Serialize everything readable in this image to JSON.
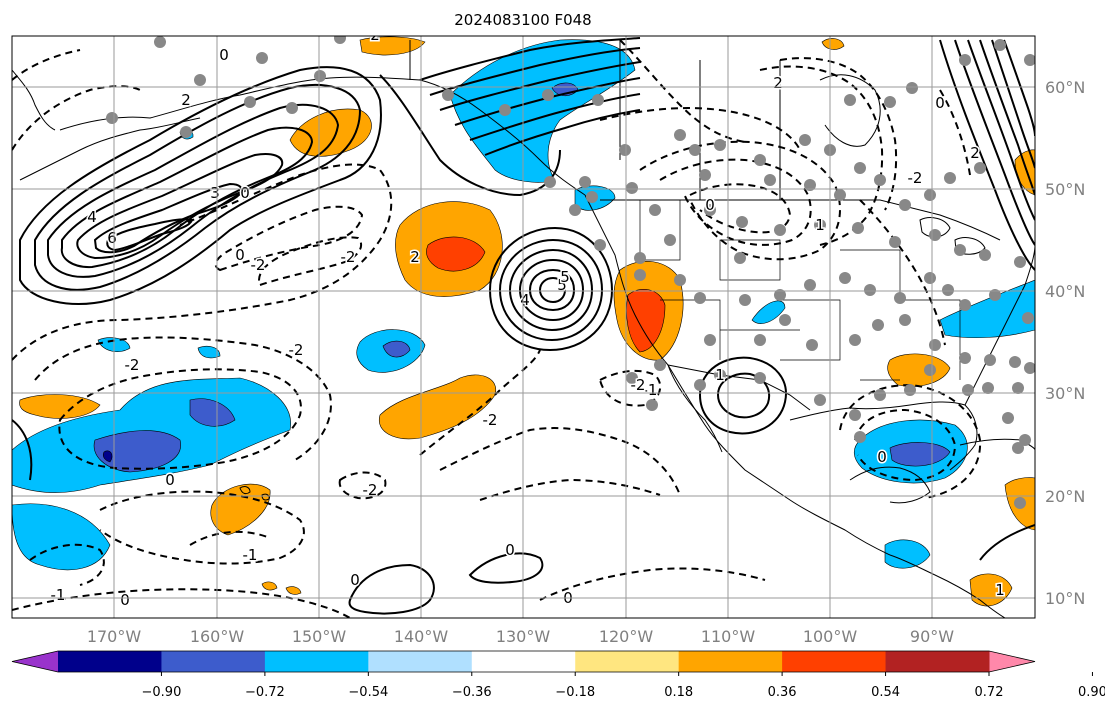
{
  "title": "2024083100 F048",
  "map": {
    "lat_labels": [
      "60°N",
      "50°N",
      "40°N",
      "30°N",
      "20°N",
      "10°N"
    ],
    "lon_labels": [
      "170°W",
      "160°W",
      "150°W",
      "140°W",
      "130°W",
      "120°W",
      "110°W",
      "100°W",
      "90°W"
    ],
    "contour_labels": [
      "2",
      "0",
      "3",
      "4",
      "6",
      "5",
      "0",
      "2",
      "-2",
      "-2",
      "2",
      "0",
      "-2",
      "4",
      "5",
      "-2",
      "0",
      "-1",
      "-2",
      "-2",
      "-1",
      "1",
      "0",
      "0",
      "0",
      "-1",
      "0",
      "-2",
      "0",
      "-2",
      "0",
      "2",
      "1",
      "0",
      "1",
      "2"
    ],
    "colors": {
      "purple": "#9933cc",
      "navy": "#00008b",
      "royal_blue": "#3d5ccc",
      "deep_sky": "#00bfff",
      "light_blue": "#b0e0ff",
      "white": "#ffffff",
      "yellow": "#ffe680",
      "orange": "#ffa500",
      "red_orange": "#ff4000",
      "firebrick": "#b22222",
      "pink": "#ff88aa",
      "station_dot": "#888888"
    }
  },
  "colorbar": {
    "ticks": [
      "−0.90",
      "−0.72",
      "−0.54",
      "−0.36",
      "−0.18",
      "0.18",
      "0.36",
      "0.54",
      "0.72",
      "0.90"
    ],
    "colors": [
      "#9933cc",
      "#00008b",
      "#3d5ccc",
      "#00bfff",
      "#b0e0ff",
      "#ffffff",
      "#ffe680",
      "#ffa500",
      "#ff4000",
      "#b22222",
      "#ff88aa"
    ]
  }
}
